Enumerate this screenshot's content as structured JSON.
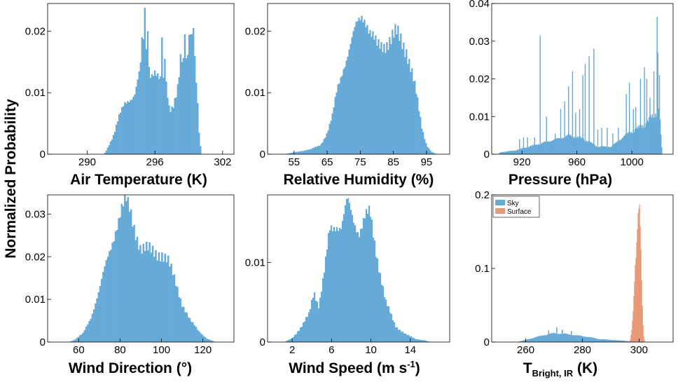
{
  "figure": {
    "shared_ylabel": "Normalized Probability",
    "colors": {
      "sky": "#66aad8",
      "surface": "#e89a78",
      "axis": "#000000"
    }
  },
  "chart_data": [
    {
      "type": "bar",
      "xlabel": "Air Temperature (K)",
      "xlim": [
        286.5,
        303
      ],
      "ylim": [
        0,
        0.0245
      ],
      "xticks": [
        290,
        296,
        302
      ],
      "xticklabels": [
        "290",
        "296",
        "302"
      ],
      "yticks": [
        0,
        0.01,
        0.02
      ],
      "yticklabels": [
        "0",
        "0.01",
        "0.02"
      ],
      "grid": false,
      "series": [
        {
          "color": "#66aad8",
          "anchors": [
            [
              291.5,
              0
            ],
            [
              291.8,
              0.001
            ],
            [
              292.3,
              0.003
            ],
            [
              292.8,
              0.006
            ],
            [
              293.3,
              0.008
            ],
            [
              293.8,
              0.009
            ],
            [
              294.2,
              0.01
            ],
            [
              294.7,
              0.014
            ],
            [
              295.0,
              0.018
            ],
            [
              295.3,
              0.016
            ],
            [
              295.6,
              0.013
            ],
            [
              296.0,
              0.014
            ],
            [
              296.5,
              0.012
            ],
            [
              297.0,
              0.011
            ],
            [
              297.3,
              0.007
            ],
            [
              297.6,
              0.008
            ],
            [
              298.0,
              0.011
            ],
            [
              298.3,
              0.016
            ],
            [
              298.7,
              0.013
            ],
            [
              299.0,
              0.018
            ],
            [
              299.3,
              0.019
            ],
            [
              299.6,
              0.015
            ],
            [
              299.9,
              0.004
            ],
            [
              300.1,
              0
            ]
          ],
          "spikes": [
            [
              295.1,
              0.0238
            ],
            [
              295.3,
              0.02
            ],
            [
              294.9,
              0.019
            ],
            [
              296.6,
              0.019
            ],
            [
              298.6,
              0.0195
            ],
            [
              299.4,
              0.0205
            ],
            [
              299.2,
              0.0195
            ],
            [
              296.9,
              0.0155
            ]
          ]
        }
      ]
    },
    {
      "type": "bar",
      "xlabel": "Relative Humidity (%)",
      "xlim": [
        47,
        102
      ],
      "ylim": [
        0,
        0.0245
      ],
      "xticks": [
        55,
        65,
        75,
        85,
        95
      ],
      "xticklabels": [
        "55",
        "65",
        "75",
        "85",
        "95"
      ],
      "yticks": [
        0,
        0.01,
        0.02
      ],
      "yticklabels": [
        "0",
        "0.01",
        "0.02"
      ],
      "grid": false,
      "series": [
        {
          "color": "#66aad8",
          "anchors": [
            [
              52,
              0
            ],
            [
              56,
              0.0004
            ],
            [
              60,
              0.0008
            ],
            [
              63,
              0.0015
            ],
            [
              65,
              0.0035
            ],
            [
              66.5,
              0.006
            ],
            [
              68,
              0.0105
            ],
            [
              70,
              0.0145
            ],
            [
              72,
              0.0175
            ],
            [
              74,
              0.021
            ],
            [
              75.5,
              0.023
            ],
            [
              76.5,
              0.0225
            ],
            [
              78,
              0.0195
            ],
            [
              80,
              0.0175
            ],
            [
              82,
              0.018
            ],
            [
              84,
              0.0185
            ],
            [
              86,
              0.0195
            ],
            [
              87.5,
              0.0185
            ],
            [
              89,
              0.017
            ],
            [
              90.5,
              0.0135
            ],
            [
              92,
              0.0095
            ],
            [
              93.5,
              0.0045
            ],
            [
              95,
              0.0015
            ],
            [
              96.5,
              0.0004
            ],
            [
              98,
              0
            ]
          ],
          "spikes": []
        }
      ]
    },
    {
      "type": "bar",
      "xlabel": "Pressure (hPa)",
      "xlim": [
        898,
        1030
      ],
      "ylim": [
        0,
        0.04
      ],
      "xticks": [
        920,
        960,
        1000
      ],
      "xticklabels": [
        "920",
        "960",
        "1000"
      ],
      "yticks": [
        0,
        0.01,
        0.02,
        0.03,
        0.04
      ],
      "yticklabels": [
        "0",
        "0.01",
        "0.02",
        "0.03",
        "0.04"
      ],
      "grid": false,
      "series": [
        {
          "color": "#66aad8",
          "anchors": [
            [
              903,
              0
            ],
            [
              904,
              0.0005
            ],
            [
              915,
              0.001
            ],
            [
              925,
              0.002
            ],
            [
              935,
              0.003
            ],
            [
              945,
              0.004
            ],
            [
              955,
              0.005
            ],
            [
              965,
              0.004
            ],
            [
              975,
              0.002
            ],
            [
              985,
              0.002
            ],
            [
              995,
              0.005
            ],
            [
              1005,
              0.007
            ],
            [
              1010,
              0.008
            ],
            [
              1015,
              0.01
            ],
            [
              1020,
              0.012
            ],
            [
              1022,
              0
            ]
          ],
          "spikes": [
            [
              918,
              0.004
            ],
            [
              921,
              0.0045
            ],
            [
              924,
              0.0045
            ],
            [
              929,
              0.0045
            ],
            [
              933,
              0.0315
            ],
            [
              938,
              0.01
            ],
            [
              944,
              0.0055
            ],
            [
              948,
              0.012
            ],
            [
              951,
              0.014
            ],
            [
              954,
              0.018
            ],
            [
              957,
              0.022
            ],
            [
              959,
              0.011
            ],
            [
              962,
              0.012
            ],
            [
              964,
              0.021
            ],
            [
              966,
              0.024
            ],
            [
              969,
              0.026
            ],
            [
              972,
              0.028
            ],
            [
              975,
              0.0065
            ],
            [
              978,
              0.007
            ],
            [
              982,
              0.007
            ],
            [
              986,
              0.0055
            ],
            [
              990,
              0.007
            ],
            [
              996,
              0.016
            ],
            [
              998,
              0.019
            ],
            [
              1001,
              0.012
            ],
            [
              1003,
              0.0125
            ],
            [
              1006,
              0.02
            ],
            [
              1009,
              0.023
            ],
            [
              1011,
              0.02
            ],
            [
              1013,
              0.015
            ],
            [
              1016,
              0.022
            ],
            [
              1018,
              0.0365
            ],
            [
              1019,
              0.027
            ],
            [
              1020,
              0.021
            ]
          ]
        }
      ]
    },
    {
      "type": "bar",
      "xlabel": "Wind Direction (°)",
      "xlim": [
        45,
        135
      ],
      "ylim": [
        0,
        0.0345
      ],
      "xticks": [
        60,
        80,
        100,
        120
      ],
      "xticklabels": [
        "60",
        "80",
        "100",
        "120"
      ],
      "yticks": [
        0,
        0.01,
        0.02,
        0.03
      ],
      "yticklabels": [
        "0",
        "0.01",
        "0.02",
        "0.03"
      ],
      "grid": false,
      "series": [
        {
          "color": "#66aad8",
          "anchors": [
            [
              55,
              0
            ],
            [
              58,
              0.0005
            ],
            [
              62,
              0.002
            ],
            [
              66,
              0.006
            ],
            [
              70,
              0.012
            ],
            [
              74,
              0.02
            ],
            [
              78,
              0.027
            ],
            [
              81,
              0.031
            ],
            [
              83,
              0.0325
            ],
            [
              85,
              0.0305
            ],
            [
              87,
              0.027
            ],
            [
              90,
              0.022
            ],
            [
              93,
              0.0215
            ],
            [
              97,
              0.021
            ],
            [
              100,
              0.021
            ],
            [
              103,
              0.019
            ],
            [
              106,
              0.015
            ],
            [
              110,
              0.009
            ],
            [
              114,
              0.005
            ],
            [
              118,
              0.0025
            ],
            [
              122,
              0.0008
            ],
            [
              126,
              0
            ]
          ],
          "spikes": []
        }
      ]
    },
    {
      "type": "bar",
      "xlabel": "Wind Speed (m s-1)",
      "xlim": [
        -0.5,
        18
      ],
      "ylim": [
        0,
        0.0185
      ],
      "xticks": [
        2,
        6,
        10,
        14
      ],
      "xticklabels": [
        "2",
        "6",
        "10",
        "14"
      ],
      "yticks": [
        0,
        0.01
      ],
      "yticklabels": [
        "0",
        "0.01"
      ],
      "grid": false,
      "series": [
        {
          "color": "#66aad8",
          "anchors": [
            [
              1.2,
              0
            ],
            [
              2,
              0.0005
            ],
            [
              3,
              0.002
            ],
            [
              3.7,
              0.0035
            ],
            [
              4.2,
              0.0065
            ],
            [
              4.7,
              0.0045
            ],
            [
              5.3,
              0.009
            ],
            [
              5.8,
              0.014
            ],
            [
              6.5,
              0.015
            ],
            [
              7.0,
              0.0145
            ],
            [
              7.6,
              0.0175
            ],
            [
              8.2,
              0.0155
            ],
            [
              8.8,
              0.014
            ],
            [
              9.4,
              0.0155
            ],
            [
              9.9,
              0.016
            ],
            [
              10.6,
              0.011
            ],
            [
              11.5,
              0.005
            ],
            [
              12.5,
              0.002
            ],
            [
              13.5,
              0.001
            ],
            [
              14.5,
              0.0004
            ],
            [
              15.5,
              0.0002
            ],
            [
              16,
              0
            ]
          ],
          "spikes": []
        }
      ]
    },
    {
      "type": "bar",
      "xlabel_main": "T",
      "xlabel_sub": "Bright, IR",
      "xlabel_unit": " (K)",
      "xlim": [
        248,
        312
      ],
      "ylim": [
        0,
        0.2
      ],
      "xticks": [
        260,
        280,
        300
      ],
      "xticklabels": [
        "260",
        "280",
        "300"
      ],
      "yticks": [
        0,
        0.1,
        0.2
      ],
      "yticklabels": [
        "0",
        "0.1",
        "0.2"
      ],
      "grid": false,
      "legend": {
        "position": "top-left",
        "entries": [
          "Sky",
          "Surface"
        ]
      },
      "series": [
        {
          "name": "Sky",
          "color": "#66aad8",
          "anchors": [
            [
              257,
              0
            ],
            [
              258,
              0.001
            ],
            [
              262,
              0.005
            ],
            [
              266,
              0.009
            ],
            [
              270,
              0.012
            ],
            [
              274,
              0.011
            ],
            [
              278,
              0.009
            ],
            [
              282,
              0.007
            ],
            [
              286,
              0.004
            ],
            [
              290,
              0.003
            ],
            [
              294,
              0.002
            ],
            [
              297,
              0.001
            ],
            [
              299,
              0
            ]
          ],
          "spikes": [
            [
              271,
              0.02
            ],
            [
              273,
              0.017
            ],
            [
              268,
              0.016
            ],
            [
              276,
              0.015
            ]
          ]
        },
        {
          "name": "Surface",
          "color": "#e89a78",
          "anchors": [
            [
              296.5,
              0
            ],
            [
              297,
              0.005
            ],
            [
              297.5,
              0.02
            ],
            [
              298,
              0.05
            ],
            [
              298.5,
              0.1
            ],
            [
              299,
              0.13
            ],
            [
              299.5,
              0.17
            ],
            [
              300,
              0.185
            ],
            [
              300.5,
              0.14
            ],
            [
              301,
              0.06
            ],
            [
              301.5,
              0.01
            ],
            [
              302,
              0
            ]
          ],
          "spikes": [
            [
              300.1,
              0.187
            ],
            [
              299.6,
              0.175
            ]
          ]
        }
      ]
    }
  ]
}
